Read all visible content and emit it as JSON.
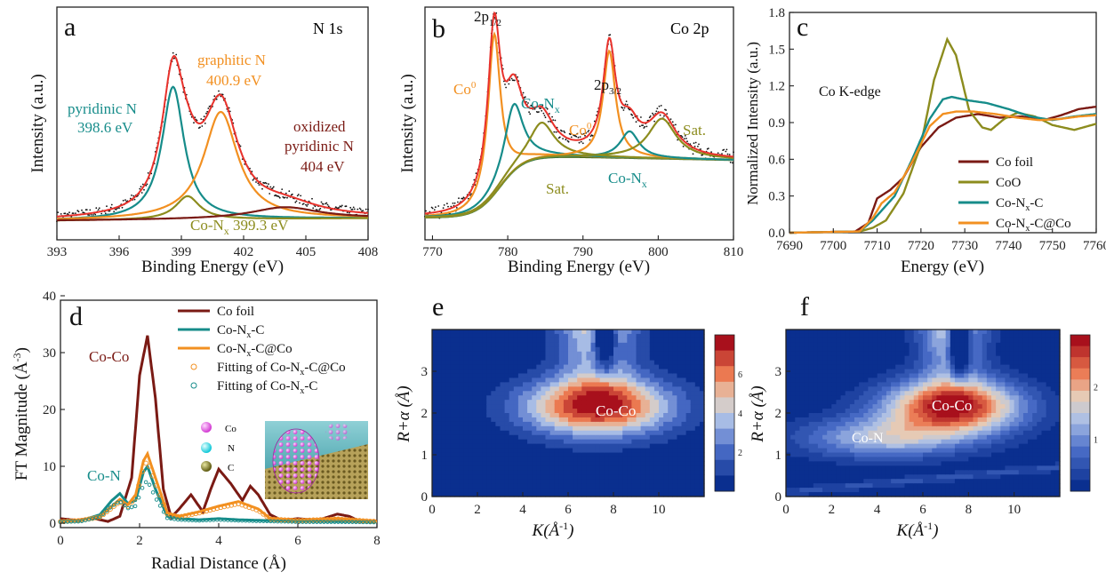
{
  "colors": {
    "black_dots": "#111111",
    "red": "#e8312b",
    "teal": "#168c8a",
    "orange": "#f29021",
    "olive": "#8c8c1e",
    "darkred": "#7a1a14",
    "darkgreen": "#4f6b1a",
    "wt_low": "#0a2f8f",
    "wt_high": "#a8101c"
  },
  "chart_data": [
    {
      "id": "a",
      "type": "line",
      "panel_letter": "a",
      "title": "N 1s",
      "xlabel": "Binding Energy (eV)",
      "ylabel": "Intensity (a.u.)",
      "xlim": [
        393,
        408
      ],
      "xticks": [
        "393",
        "396",
        "399",
        "402",
        "405",
        "408"
      ],
      "annotations": {
        "pyridinic": "pyridinic N",
        "pyridinic_e": "398.6 eV",
        "graphitic": "graphitic N",
        "graphitic_e": "400.9 eV",
        "oxidized1": "oxidized",
        "oxidized2": "pyridinic N",
        "oxidized_e": "404 eV",
        "conx": "Co-N",
        "conx_sub": "x",
        "conx_e": " 399.3 eV"
      },
      "series": [
        {
          "name": "pyridinic N",
          "center": 398.6,
          "height": 0.68,
          "fwhm": 1.3
        },
        {
          "name": "graphitic N",
          "center": 400.9,
          "height": 0.55,
          "fwhm": 2.0
        },
        {
          "name": "Co-Nx",
          "center": 399.3,
          "height": 0.12,
          "fwhm": 1.4
        },
        {
          "name": "oxidized pyridinic N",
          "center": 404.0,
          "height": 0.06,
          "fwhm": 4.0
        }
      ]
    },
    {
      "id": "b",
      "type": "line",
      "panel_letter": "b",
      "title": "Co 2p",
      "xlabel": "Binding Energy (eV)",
      "ylabel": "Intensity (a.u.)",
      "xlim": [
        769,
        810
      ],
      "xticks": [
        "770",
        "780",
        "790",
        "800",
        "810"
      ],
      "annotations": {
        "p12": "2p",
        "p12_sub": "1/2",
        "p32": "2p",
        "p32_sub": "3/2",
        "co0_left": "Co",
        "co0_right": "Co",
        "co0_sup": "0",
        "conx_top": "Co-N",
        "conx_bottom": "Co-N",
        "conx_sub": "x",
        "sat_left": "Sat.",
        "sat_right": "Sat."
      },
      "series": [
        {
          "name": "Co0 2p3/2",
          "center": 778.2,
          "height": 0.72,
          "fwhm": 2.0
        },
        {
          "name": "Co-Nx 2p3/2",
          "center": 780.8,
          "height": 0.3,
          "fwhm": 3.0
        },
        {
          "name": "Sat. 2p3/2",
          "center": 784.5,
          "height": 0.16,
          "fwhm": 4.0
        },
        {
          "name": "Co0 2p1/2",
          "center": 793.5,
          "height": 0.48,
          "fwhm": 2.0
        },
        {
          "name": "Co-Nx 2p1/2",
          "center": 796.2,
          "height": 0.12,
          "fwhm": 3.0
        },
        {
          "name": "Sat. 2p1/2",
          "center": 800.5,
          "height": 0.18,
          "fwhm": 4.5
        }
      ]
    },
    {
      "id": "c",
      "type": "line",
      "panel_letter": "c",
      "title": "Co K-edge",
      "xlabel": "Energy (eV)",
      "ylabel": "Normalized Intensity (a.u.)",
      "xlim": [
        7690,
        7760
      ],
      "ylim": [
        0,
        1.8
      ],
      "xticks": [
        "7690",
        "7700",
        "7710",
        "7720",
        "7730",
        "7740",
        "7750",
        "7760"
      ],
      "yticks": [
        "0.0",
        "0.3",
        "0.6",
        "0.9",
        "1.2",
        "1.5",
        "1.8"
      ],
      "legend": [
        "Co foil",
        "CoO",
        "Co-N",
        "Co-N"
      ],
      "legend_subs": [
        "",
        "",
        "x",
        "x"
      ],
      "legend_tails": [
        "",
        "",
        "-C",
        "-C@Co"
      ],
      "series": [
        {
          "name": "Co foil",
          "points": [
            [
              7690,
              0
            ],
            [
              7705,
              0.01
            ],
            [
              7708,
              0.08
            ],
            [
              7710,
              0.28
            ],
            [
              7713,
              0.35
            ],
            [
              7716,
              0.45
            ],
            [
              7720,
              0.7
            ],
            [
              7724,
              0.86
            ],
            [
              7728,
              0.94
            ],
            [
              7733,
              0.97
            ],
            [
              7738,
              0.94
            ],
            [
              7743,
              0.95
            ],
            [
              7748,
              0.92
            ],
            [
              7752,
              0.96
            ],
            [
              7756,
              1.01
            ],
            [
              7760,
              1.03
            ]
          ]
        },
        {
          "name": "CoO",
          "points": [
            [
              7690,
              0
            ],
            [
              7706,
              0.01
            ],
            [
              7709,
              0.04
            ],
            [
              7712,
              0.1
            ],
            [
              7716,
              0.32
            ],
            [
              7720,
              0.72
            ],
            [
              7723,
              1.25
            ],
            [
              7726,
              1.58
            ],
            [
              7728,
              1.45
            ],
            [
              7731,
              1.0
            ],
            [
              7734,
              0.86
            ],
            [
              7736,
              0.84
            ],
            [
              7739,
              0.93
            ],
            [
              7742,
              0.98
            ],
            [
              7746,
              0.95
            ],
            [
              7750,
              0.88
            ],
            [
              7755,
              0.84
            ],
            [
              7760,
              0.89
            ]
          ]
        },
        {
          "name": "Co-Nx-C",
          "points": [
            [
              7690,
              0
            ],
            [
              7706,
              0.01
            ],
            [
              7709,
              0.1
            ],
            [
              7711,
              0.18
            ],
            [
              7714,
              0.3
            ],
            [
              7718,
              0.6
            ],
            [
              7722,
              0.93
            ],
            [
              7725,
              1.09
            ],
            [
              7727,
              1.11
            ],
            [
              7731,
              1.08
            ],
            [
              7735,
              1.06
            ],
            [
              7740,
              1.01
            ],
            [
              7745,
              0.95
            ],
            [
              7750,
              0.92
            ],
            [
              7755,
              0.95
            ],
            [
              7760,
              0.97
            ]
          ]
        },
        {
          "name": "Co-Nx-C@Co",
          "points": [
            [
              7690,
              0
            ],
            [
              7706,
              0.01
            ],
            [
              7709,
              0.12
            ],
            [
              7711,
              0.24
            ],
            [
              7714,
              0.33
            ],
            [
              7718,
              0.58
            ],
            [
              7722,
              0.87
            ],
            [
              7725,
              0.97
            ],
            [
              7728,
              0.99
            ],
            [
              7732,
              0.99
            ],
            [
              7737,
              0.97
            ],
            [
              7742,
              0.94
            ],
            [
              7747,
              0.92
            ],
            [
              7752,
              0.93
            ],
            [
              7756,
              0.95
            ],
            [
              7760,
              0.96
            ]
          ]
        }
      ]
    },
    {
      "id": "d",
      "type": "line",
      "panel_letter": "d",
      "xlabel": "Radial Distance (Å)",
      "ylabel": "FT Magnitude (Å",
      "ylabel_sup": "-3",
      "ylabel_tail": ")",
      "xlim": [
        0,
        8
      ],
      "ylim": [
        0,
        40
      ],
      "xticks": [
        "0",
        "2",
        "4",
        "6",
        "8"
      ],
      "yticks": [
        "0",
        "10",
        "20",
        "30",
        "40"
      ],
      "annotations": {
        "coco": "Co-Co",
        "con": "Co-N"
      },
      "legend": [
        "Co foil",
        "Co-N",
        "Co-N",
        "Fitting of  Co-N",
        "Fitting of  Co-N"
      ],
      "legend_subs": [
        "",
        "x",
        "x",
        "x",
        "x"
      ],
      "legend_tails": [
        "",
        "-C",
        "-C@Co",
        "-C@Co",
        "-C"
      ],
      "inset_labels": [
        "Co",
        "N",
        "C"
      ],
      "series": [
        {
          "name": "Co foil",
          "points": [
            [
              0,
              0.8
            ],
            [
              0.4,
              0.5
            ],
            [
              0.8,
              0.9
            ],
            [
              1.2,
              0.3
            ],
            [
              1.5,
              1.2
            ],
            [
              1.8,
              8
            ],
            [
              2.0,
              26
            ],
            [
              2.2,
              33
            ],
            [
              2.4,
              22
            ],
            [
              2.6,
              6
            ],
            [
              2.8,
              1
            ],
            [
              3.0,
              2.5
            ],
            [
              3.3,
              5
            ],
            [
              3.6,
              2
            ],
            [
              3.8,
              6
            ],
            [
              4.0,
              9.5
            ],
            [
              4.3,
              7
            ],
            [
              4.6,
              4
            ],
            [
              4.8,
              6.5
            ],
            [
              5.0,
              5
            ],
            [
              5.3,
              1.5
            ],
            [
              5.6,
              0.5
            ],
            [
              6.0,
              0.8
            ],
            [
              6.5,
              0.5
            ],
            [
              7.0,
              1.6
            ],
            [
              7.3,
              1.2
            ],
            [
              7.6,
              0.2
            ],
            [
              8.0,
              0.4
            ]
          ]
        },
        {
          "name": "Co-Nx-C",
          "points": [
            [
              0,
              0.3
            ],
            [
              0.5,
              0.4
            ],
            [
              1.0,
              1.5
            ],
            [
              1.3,
              4
            ],
            [
              1.5,
              5.2
            ],
            [
              1.7,
              3.5
            ],
            [
              1.9,
              4
            ],
            [
              2.1,
              9
            ],
            [
              2.2,
              10
            ],
            [
              2.4,
              6
            ],
            [
              2.7,
              1.2
            ],
            [
              3.0,
              0.8
            ],
            [
              3.5,
              0.6
            ],
            [
              4.0,
              0.8
            ],
            [
              4.5,
              0.6
            ],
            [
              5.0,
              0.5
            ],
            [
              6.0,
              0.3
            ],
            [
              7.0,
              0.3
            ],
            [
              8.0,
              0.2
            ]
          ]
        },
        {
          "name": "Co-Nx-C@Co",
          "points": [
            [
              0,
              0.3
            ],
            [
              0.5,
              0.5
            ],
            [
              1.0,
              1.2
            ],
            [
              1.3,
              3
            ],
            [
              1.5,
              4.2
            ],
            [
              1.7,
              3.2
            ],
            [
              1.9,
              5
            ],
            [
              2.1,
              11
            ],
            [
              2.2,
              12.2
            ],
            [
              2.4,
              8
            ],
            [
              2.7,
              1.8
            ],
            [
              3.0,
              1.2
            ],
            [
              3.5,
              2
            ],
            [
              4.0,
              3
            ],
            [
              4.5,
              3.8
            ],
            [
              5.0,
              2.5
            ],
            [
              5.3,
              0.8
            ],
            [
              6.0,
              0.5
            ],
            [
              7.0,
              0.8
            ],
            [
              8.0,
              0.3
            ]
          ]
        }
      ]
    },
    {
      "id": "e",
      "type": "heatmap",
      "panel_letter": "e",
      "xlabel": "K(Å",
      "xlabel_sup": "-1",
      "xlabel_tail": ")",
      "ylabel": "R+α (Å)",
      "xlim": [
        0,
        12
      ],
      "ylim": [
        0,
        4
      ],
      "xticks": [
        "0",
        "2",
        "4",
        "6",
        "8",
        "10"
      ],
      "yticks": [
        "0",
        "1",
        "2",
        "3"
      ],
      "colorbar_ticks": [
        "2",
        "4",
        "6"
      ],
      "peak_label": "Co-Co",
      "peaks": [
        {
          "k": 7.3,
          "r": 2.15
        }
      ]
    },
    {
      "id": "f",
      "type": "heatmap",
      "panel_letter": "f",
      "xlabel": "K(Å",
      "xlabel_sup": "-1",
      "xlabel_tail": ")",
      "ylabel": "R+α (Å)",
      "xlim": [
        0,
        12
      ],
      "ylim": [
        0,
        4
      ],
      "xticks": [
        "0",
        "2",
        "4",
        "6",
        "8",
        "10"
      ],
      "yticks": [
        "0",
        "1",
        "2",
        "3"
      ],
      "colorbar_ticks": [
        "1",
        "2"
      ],
      "peak_labels": [
        "Co-Co",
        "Co-N"
      ],
      "peaks": [
        {
          "k": 7.3,
          "r": 2.15
        },
        {
          "k": 4.2,
          "r": 1.4
        }
      ]
    }
  ]
}
